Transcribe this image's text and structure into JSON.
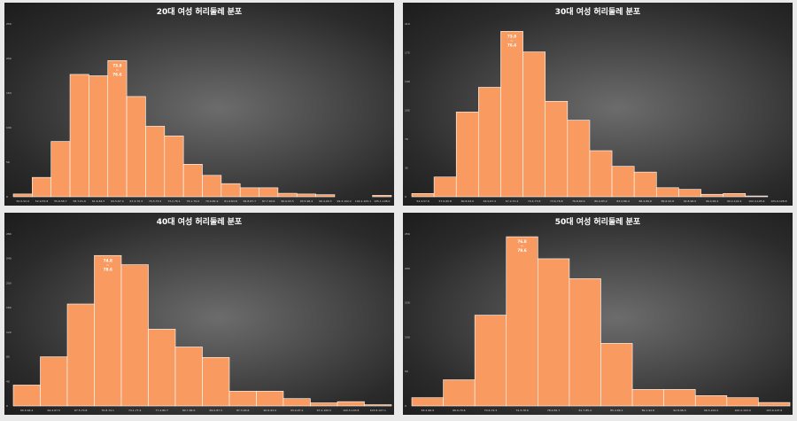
{
  "colors": {
    "bar_fill": "#f99b60",
    "bar_stroke": "#ffffff",
    "title": "#ffffff"
  },
  "chart_data": [
    {
      "type": "bar",
      "title": "20대 여성 허리둘레 분포",
      "categories": [
        "50.0-52.9",
        "52.9-55.8",
        "55.8-58.7",
        "58.7-61.6",
        "61.6-64.5",
        "64.5-67.4",
        "67.4-70.3",
        "70.3-73.2",
        "73.2-76.1",
        "76.1-79.0",
        "79.0-81.9",
        "81.9-84.8",
        "84.8-87.7",
        "87.7-90.6",
        "90.6-93.5",
        "93.5-96.4",
        "96.4-99.3",
        "99.3-102.2",
        "102.2-105.1",
        "105.1-108.0"
      ],
      "values": [
        4,
        28,
        80,
        177,
        175,
        197,
        145,
        102,
        88,
        47,
        31,
        19,
        13,
        13,
        5,
        4,
        3,
        0,
        0,
        2
      ],
      "ylim": [
        0,
        250
      ],
      "yticks": [
        0,
        50,
        100,
        150,
        200,
        250
      ],
      "peak_label": [
        "73.8",
        "~",
        "76.6"
      ],
      "peak_index": 5
    },
    {
      "type": "bar",
      "title": "30대 여성 허리둘레 분포",
      "categories": [
        "54.4-57.6",
        "57.6-60.8",
        "60.8-64.0",
        "64.0-67.2",
        "67.2-70.4",
        "70.4-73.6",
        "73.6-76.8",
        "76.8-80.0",
        "80.0-83.2",
        "83.2-86.4",
        "86.4-89.6",
        "89.6-92.8",
        "92.8-96.0",
        "96.0-99.2",
        "99.2-102.4",
        "102.4-105.6",
        "105.6-108.8"
      ],
      "values": [
        4,
        24,
        103,
        133,
        201,
        176,
        116,
        93,
        56,
        37,
        30,
        11,
        9,
        3,
        4,
        1,
        0
      ],
      "ylim": [
        0,
        210
      ],
      "yticks": [
        0,
        35,
        70,
        105,
        140,
        175,
        210
      ],
      "peak_label": [
        "73.8",
        "~",
        "76.4"
      ],
      "peak_index": 4
    },
    {
      "type": "bar",
      "title": "40대 여성 허리둘레 분포",
      "categories": [
        "60.9-64.2",
        "64.2-67.5",
        "67.5-70.8",
        "70.8-74.1",
        "74.1-77.4",
        "77.4-80.7",
        "80.7-84.0",
        "84.0-87.3",
        "87.3-90.6",
        "90.6-93.9",
        "93.9-97.2",
        "97.2-100.5",
        "100.5-103.8",
        "103.8-107.1"
      ],
      "values": [
        34,
        80,
        166,
        245,
        230,
        125,
        96,
        79,
        24,
        24,
        12,
        5,
        7,
        2
      ],
      "ylim": [
        0,
        280
      ],
      "yticks": [
        0,
        40,
        80,
        120,
        160,
        200,
        240,
        280
      ],
      "peak_label": [
        "74.8",
        "~",
        "78.6"
      ],
      "peak_index": 3
    },
    {
      "type": "bar",
      "title": "50대 여성 허리둘레 분포",
      "categories": [
        "63.2-66.9",
        "66.9-70.6",
        "70.6-74.3",
        "74.3-78.0",
        "78.0-81.7",
        "81.7-85.4",
        "85.4-89.1",
        "89.1-92.8",
        "92.8-96.5",
        "96.5-100.2",
        "100.2-103.9",
        "103.9-107.6"
      ],
      "values": [
        12,
        38,
        132,
        246,
        214,
        185,
        91,
        24,
        24,
        15,
        12,
        5
      ],
      "ylim": [
        0,
        250
      ],
      "yticks": [
        0,
        50,
        100,
        150,
        200,
        250
      ],
      "peak_label": [
        "76.8",
        "~",
        "79.6"
      ],
      "peak_index": 3
    }
  ]
}
